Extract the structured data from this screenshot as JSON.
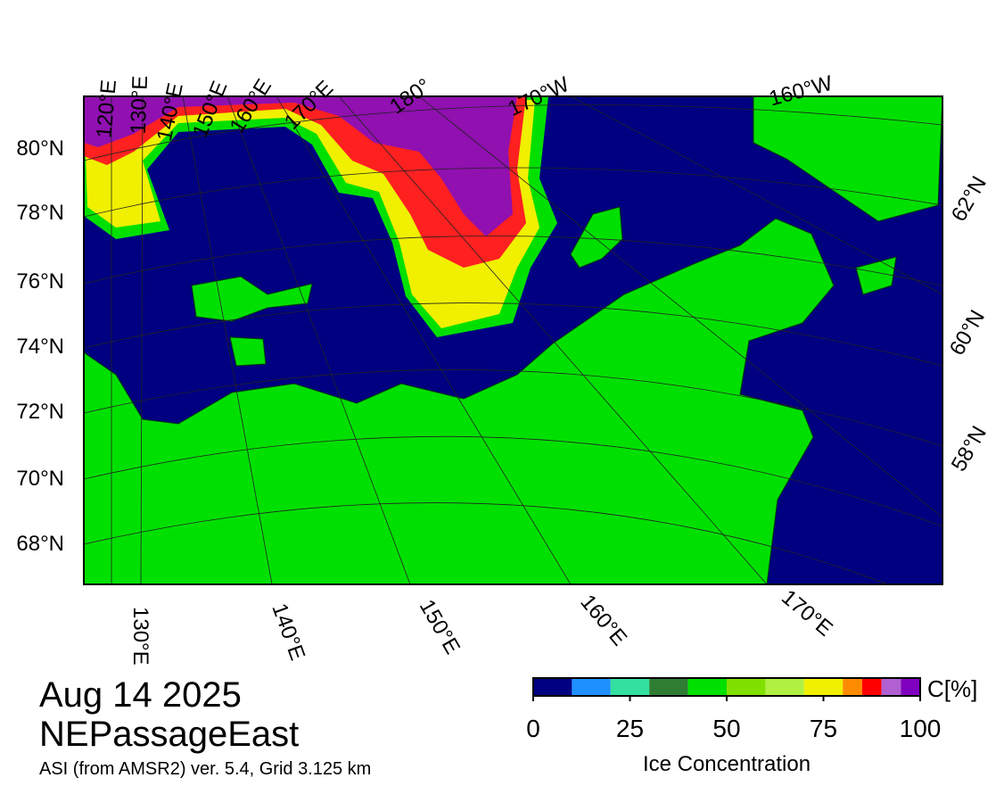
{
  "map": {
    "title": "Aug 14 2025",
    "region": "NEPassageEast",
    "source": "ASI (from AMSR2) ver. 5.4,  Grid 3.125 km",
    "lat_labels": [
      "80°N",
      "78°N",
      "76°N",
      "74°N",
      "72°N",
      "70°N",
      "68°N"
    ],
    "right_lat_labels": [
      "62°N",
      "60°N",
      "58°N"
    ],
    "top_lon_labels": [
      "120°E",
      "130°E",
      "140°E",
      "150°E",
      "160°E",
      "170°E",
      "180°",
      "170°W",
      "160°W"
    ],
    "bottom_lon_labels": [
      "130°E",
      "140°E",
      "150°E",
      "160°E",
      "170°E"
    ]
  },
  "colorbar": {
    "unit": "C[%]",
    "label": "Ice Concentration",
    "range": [
      0,
      100
    ],
    "ticks": [
      0,
      25,
      50,
      75,
      100
    ],
    "bounds": [
      0,
      10,
      20,
      30,
      40,
      50,
      60,
      70,
      80,
      85,
      90,
      95,
      100
    ],
    "colors": [
      "#000080",
      "#1e90ff",
      "#33e0a0",
      "#2e7d32",
      "#00e000",
      "#80e000",
      "#b0f040",
      "#f0f000",
      "#ff8c00",
      "#ff0000",
      "#b060d0",
      "#8000c0"
    ]
  }
}
